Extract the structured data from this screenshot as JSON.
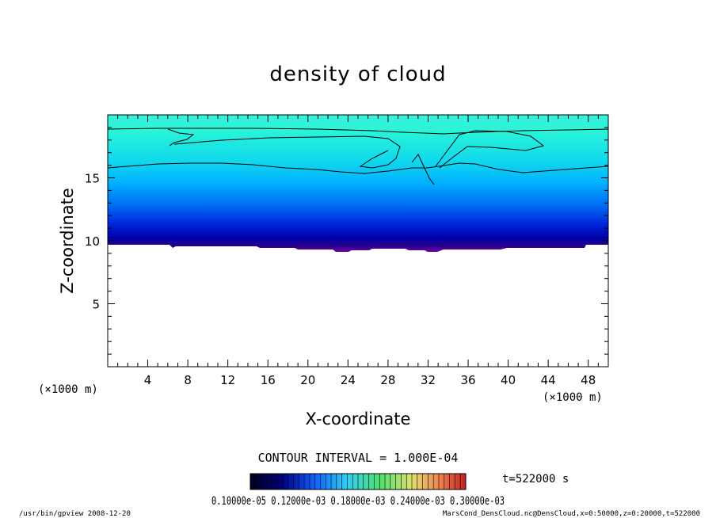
{
  "chart_data": {
    "type": "heatmap",
    "title": "density of cloud",
    "xlabel": "X-coordinate",
    "ylabel": "Z-coordinate",
    "x_unit": "(×1000 m)",
    "y_unit": "(×1000 m)",
    "xlim": [
      0,
      50
    ],
    "ylim": [
      0,
      20
    ],
    "x_ticks": [
      4,
      8,
      12,
      16,
      20,
      24,
      28,
      32,
      36,
      40,
      44,
      48
    ],
    "y_ticks": [
      5,
      10,
      15
    ],
    "contour_interval_text": "CONTOUR INTERVAL = 1.000E-04",
    "time_text": "t=522000 s",
    "colorbar_label_text": "0.10000e-05 0.12000e-03 0.18000e-03 0.24000e-03 0.30000e-03",
    "cloud_base_km": 9.8,
    "cloud_top_km": 19.5,
    "footer_left": "/usr/bin/gpview  2008-12-20",
    "footer_right": "MarsCond_DensCloud.nc@DensCloud,x=0:50000,z=0:20000,t=522000",
    "colors": {
      "top": "#33f5dc",
      "mid": "#00b4ff",
      "deep": "#0019d6",
      "base": "#00007f",
      "bottom": "#7a00b5"
    }
  }
}
